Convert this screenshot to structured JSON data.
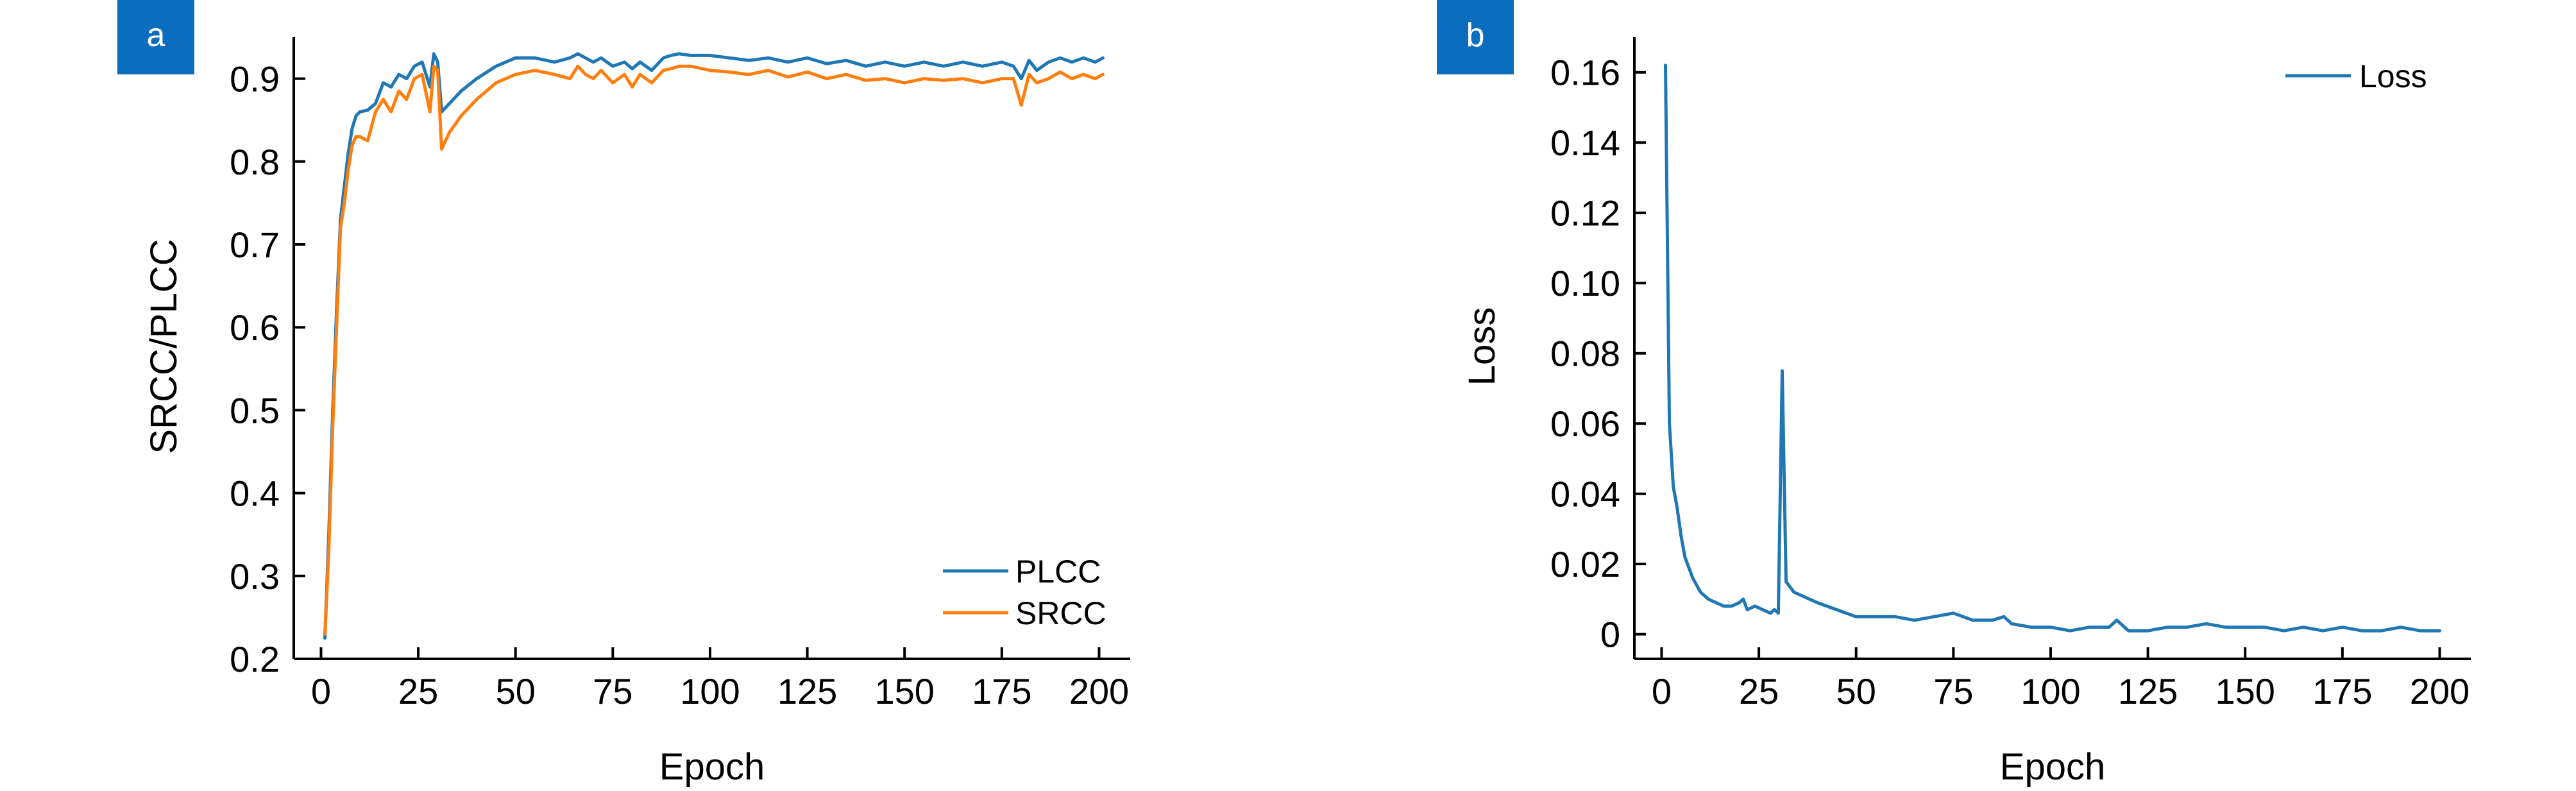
{
  "panels": [
    {
      "label": "a",
      "badge_color": "#0b6dbd"
    },
    {
      "label": "b",
      "badge_color": "#0b6dbd"
    }
  ],
  "chart_data": [
    {
      "type": "line",
      "title": "",
      "xlabel": "Epoch",
      "ylabel": "SRCC/PLCC",
      "xlim": [
        -7,
        208
      ],
      "ylim": [
        0.2,
        0.95
      ],
      "xticks": [
        0,
        25,
        50,
        75,
        100,
        125,
        150,
        175,
        200
      ],
      "xtick_labels": [
        "0",
        "25",
        "50",
        "75",
        "100",
        "125",
        "150",
        "175",
        "200"
      ],
      "yticks": [
        0.2,
        0.3,
        0.4,
        0.5,
        0.6,
        0.7,
        0.8,
        0.9
      ],
      "ytick_labels": [
        "0.2",
        "0.3",
        "0.4",
        "0.5",
        "0.6",
        "0.7",
        "0.8",
        "0.9"
      ],
      "grid": false,
      "legend_position": "bottom-right",
      "series": [
        {
          "name": "PLCC",
          "color": "#1f77b4",
          "x": [
            1,
            2,
            3,
            4,
            5,
            6,
            7,
            8,
            9,
            10,
            12,
            14,
            16,
            18,
            20,
            22,
            24,
            26,
            28,
            29,
            30,
            31,
            33,
            36,
            40,
            45,
            50,
            55,
            60,
            64,
            66,
            68,
            70,
            72,
            75,
            78,
            80,
            82,
            85,
            88,
            90,
            92,
            95,
            100,
            105,
            110,
            115,
            120,
            125,
            130,
            135,
            140,
            145,
            150,
            155,
            160,
            165,
            170,
            175,
            178,
            180,
            182,
            184,
            187,
            190,
            193,
            196,
            199,
            201
          ],
          "y": [
            0.225,
            0.35,
            0.5,
            0.62,
            0.73,
            0.77,
            0.81,
            0.84,
            0.855,
            0.86,
            0.862,
            0.87,
            0.895,
            0.89,
            0.905,
            0.9,
            0.915,
            0.92,
            0.89,
            0.93,
            0.92,
            0.86,
            0.87,
            0.885,
            0.9,
            0.915,
            0.925,
            0.925,
            0.92,
            0.925,
            0.93,
            0.925,
            0.92,
            0.925,
            0.915,
            0.92,
            0.912,
            0.92,
            0.91,
            0.925,
            0.928,
            0.93,
            0.928,
            0.928,
            0.925,
            0.922,
            0.925,
            0.92,
            0.925,
            0.918,
            0.922,
            0.915,
            0.92,
            0.915,
            0.92,
            0.915,
            0.92,
            0.915,
            0.92,
            0.915,
            0.9,
            0.922,
            0.91,
            0.92,
            0.925,
            0.92,
            0.925,
            0.92,
            0.925
          ]
        },
        {
          "name": "SRCC",
          "color": "#ff7f0e",
          "x": [
            1,
            2,
            3,
            4,
            5,
            6,
            7,
            8,
            9,
            10,
            12,
            14,
            16,
            18,
            20,
            22,
            24,
            26,
            28,
            29,
            30,
            31,
            33,
            36,
            40,
            45,
            50,
            55,
            60,
            64,
            66,
            68,
            70,
            72,
            75,
            78,
            80,
            82,
            85,
            88,
            90,
            92,
            95,
            100,
            105,
            110,
            115,
            120,
            125,
            130,
            135,
            140,
            145,
            150,
            155,
            160,
            165,
            170,
            175,
            178,
            180,
            182,
            184,
            187,
            190,
            193,
            196,
            199,
            201
          ],
          "y": [
            0.23,
            0.33,
            0.48,
            0.6,
            0.72,
            0.75,
            0.79,
            0.82,
            0.83,
            0.83,
            0.825,
            0.86,
            0.875,
            0.86,
            0.885,
            0.875,
            0.9,
            0.905,
            0.86,
            0.915,
            0.91,
            0.815,
            0.835,
            0.855,
            0.875,
            0.895,
            0.905,
            0.91,
            0.905,
            0.9,
            0.915,
            0.905,
            0.9,
            0.91,
            0.895,
            0.905,
            0.89,
            0.905,
            0.895,
            0.91,
            0.912,
            0.915,
            0.915,
            0.91,
            0.908,
            0.905,
            0.91,
            0.902,
            0.908,
            0.9,
            0.905,
            0.898,
            0.9,
            0.895,
            0.9,
            0.898,
            0.9,
            0.895,
            0.9,
            0.9,
            0.868,
            0.905,
            0.895,
            0.9,
            0.908,
            0.9,
            0.905,
            0.9,
            0.905
          ]
        }
      ]
    },
    {
      "type": "line",
      "title": "",
      "xlabel": "Epoch",
      "ylabel": "Loss",
      "xlim": [
        -7,
        208
      ],
      "ylim": [
        -0.007,
        0.17
      ],
      "xticks": [
        0,
        25,
        50,
        75,
        100,
        125,
        150,
        175,
        200
      ],
      "xtick_labels": [
        "0",
        "25",
        "50",
        "75",
        "100",
        "125",
        "150",
        "175",
        "200"
      ],
      "yticks": [
        0,
        0.02,
        0.04,
        0.06,
        0.08,
        0.1,
        0.12,
        0.14,
        0.16
      ],
      "ytick_labels": [
        "0",
        "0.02",
        "0.04",
        "0.06",
        "0.08",
        "0.10",
        "0.12",
        "0.14",
        "0.16"
      ],
      "grid": false,
      "legend_position": "top-right",
      "series": [
        {
          "name": "Loss",
          "color": "#1f77b4",
          "x": [
            1,
            2,
            3,
            4,
            5,
            6,
            8,
            10,
            12,
            14,
            16,
            18,
            20,
            21,
            22,
            24,
            26,
            28,
            29,
            30,
            31,
            32,
            34,
            36,
            40,
            45,
            50,
            55,
            60,
            65,
            70,
            75,
            80,
            85,
            88,
            90,
            95,
            100,
            105,
            110,
            115,
            117,
            120,
            125,
            130,
            135,
            140,
            145,
            150,
            155,
            160,
            165,
            170,
            175,
            180,
            185,
            190,
            195,
            200
          ],
          "y": [
            0.162,
            0.06,
            0.042,
            0.036,
            0.028,
            0.022,
            0.016,
            0.012,
            0.01,
            0.009,
            0.008,
            0.008,
            0.009,
            0.01,
            0.007,
            0.008,
            0.007,
            0.006,
            0.007,
            0.006,
            0.075,
            0.015,
            0.012,
            0.011,
            0.009,
            0.007,
            0.005,
            0.005,
            0.005,
            0.004,
            0.005,
            0.006,
            0.004,
            0.004,
            0.005,
            0.003,
            0.002,
            0.002,
            0.001,
            0.002,
            0.002,
            0.004,
            0.001,
            0.001,
            0.002,
            0.002,
            0.003,
            0.002,
            0.002,
            0.002,
            0.001,
            0.002,
            0.001,
            0.002,
            0.001,
            0.001,
            0.002,
            0.001,
            0.001
          ]
        }
      ]
    }
  ]
}
